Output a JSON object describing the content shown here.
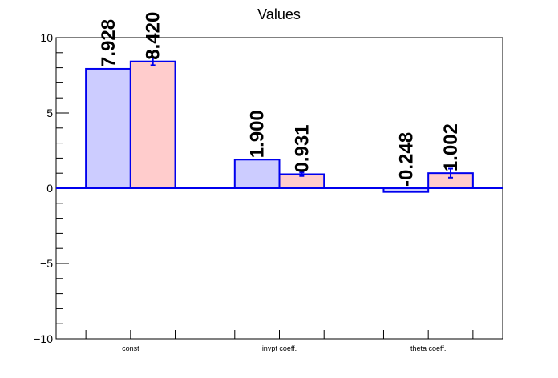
{
  "chart_data": {
    "type": "bar",
    "title": "Values",
    "xlabel": "",
    "ylabel": "",
    "categories": [
      "const",
      "invpt coeff.",
      "theta coeff."
    ],
    "series": [
      {
        "values": [
          7.928,
          1.9,
          -0.248
        ],
        "errors": [
          0,
          0,
          0
        ],
        "fill": "#ccccff",
        "stroke": "#0000ee"
      },
      {
        "values": [
          8.42,
          0.931,
          1.002
        ],
        "errors": [
          0.25,
          0.12,
          0.3
        ],
        "fill": "#ffcccc",
        "stroke": "#0000ee"
      }
    ],
    "data_labels": [
      [
        "7.928",
        "1.900",
        "-0.248"
      ],
      [
        "8.420",
        "0.931",
        "1.002"
      ]
    ],
    "ylim": [
      -10,
      10
    ],
    "yticks": [
      {
        "value": 10,
        "label": "10"
      },
      {
        "value": 5,
        "label": "5"
      },
      {
        "value": 0,
        "label": "0"
      },
      {
        "value": -5,
        "label": "−5"
      },
      {
        "value": -10,
        "label": "−10"
      }
    ],
    "zero_line": true,
    "grid": false,
    "legend": "none"
  }
}
